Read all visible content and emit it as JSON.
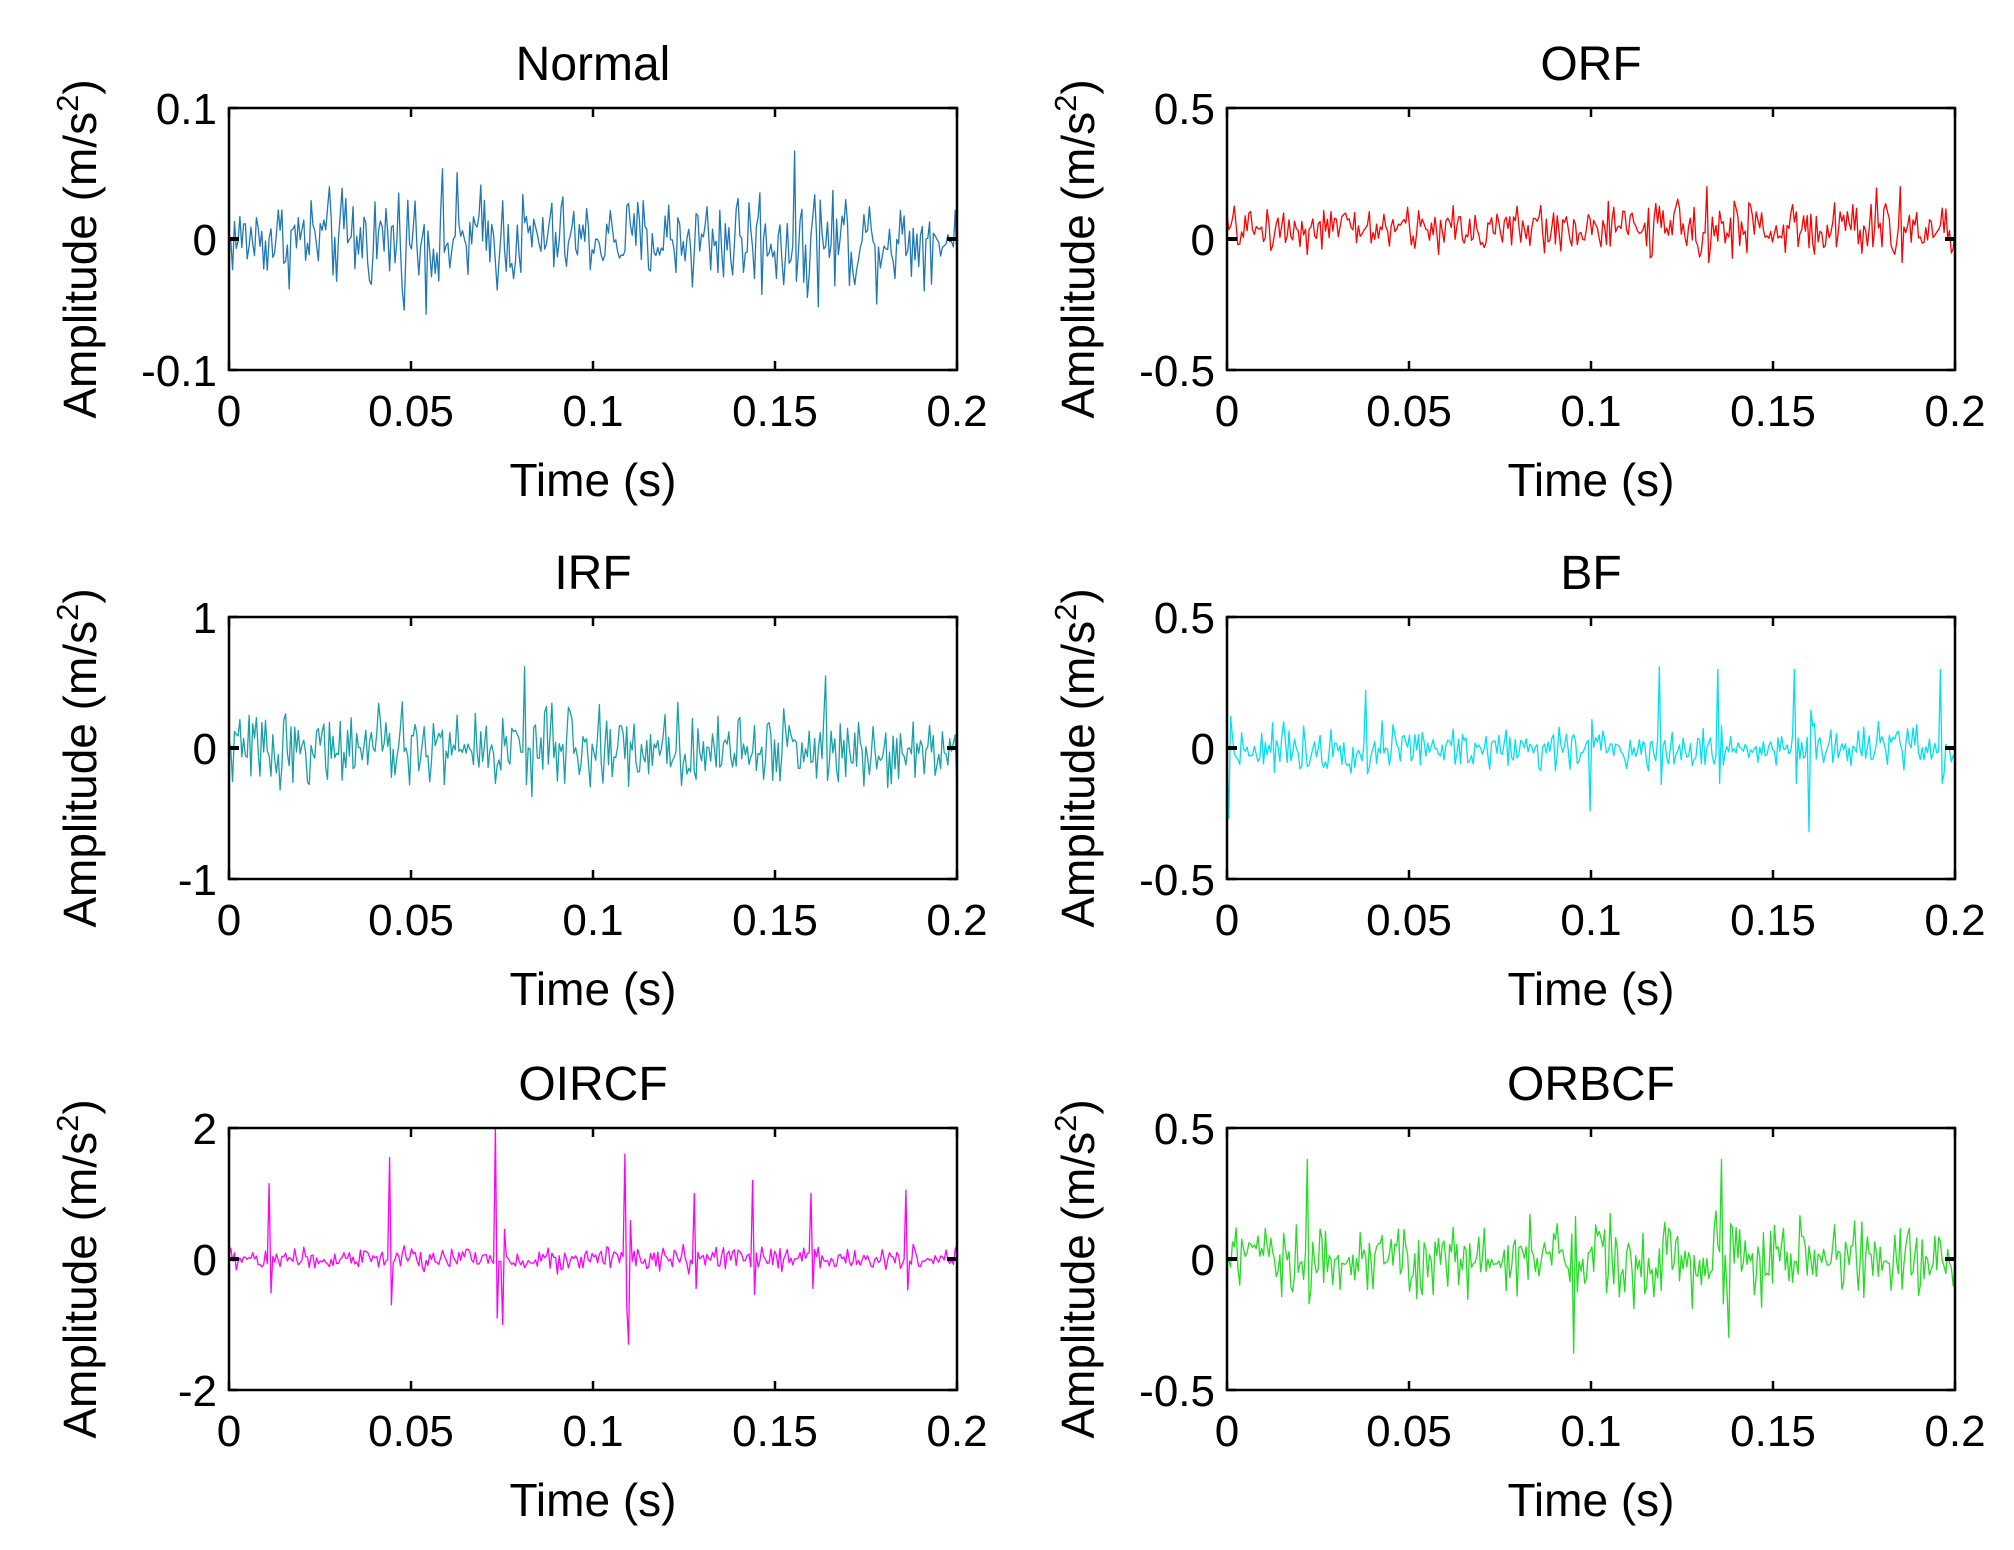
{
  "figure": {
    "background": "#ffffff"
  },
  "chart_data": [
    {
      "type": "line",
      "title": "Normal",
      "xlabel": "Time (s)",
      "ylabel_main": "Amplitude (m/s",
      "ylabel_sup": "2",
      "ylabel_close": ")",
      "xlim": [
        0,
        0.2
      ],
      "ylim": [
        -0.1,
        0.1
      ],
      "xticks": [
        0,
        0.05,
        0.1,
        0.15,
        0.2
      ],
      "xtick_labels": [
        "0",
        "0.05",
        "0.1",
        "0.15",
        "0.2"
      ],
      "yticks": [
        -0.1,
        0,
        0.1
      ],
      "ytick_labels": [
        "-0.1",
        "0",
        "0.1"
      ],
      "color": "#1f77b4",
      "signal": {
        "samples": 400,
        "noise": 0.022,
        "envelope": [
          [
            0,
            0.8
          ],
          [
            0.06,
            1.25
          ],
          [
            0.1,
            0.8
          ],
          [
            0.16,
            1.35
          ],
          [
            0.2,
            0.7
          ]
        ],
        "spikes": []
      }
    },
    {
      "type": "line",
      "title": "ORF",
      "xlabel": "Time (s)",
      "ylabel_main": "Amplitude (m/s",
      "ylabel_sup": "2",
      "ylabel_close": ")",
      "xlim": [
        0,
        0.2
      ],
      "ylim": [
        -0.5,
        0.5
      ],
      "xticks": [
        0,
        0.05,
        0.1,
        0.15,
        0.2
      ],
      "xtick_labels": [
        "0",
        "0.05",
        "0.1",
        "0.15",
        "0.2"
      ],
      "yticks": [
        -0.5,
        0,
        0.5
      ],
      "ytick_labels": [
        "-0.5",
        "0",
        "0.5"
      ],
      "color": "#ff0000",
      "signal": {
        "samples": 400,
        "noise": 0.055,
        "offset": 0.04,
        "envelope": [
          [
            0,
            0.9
          ],
          [
            0.13,
            1.1
          ],
          [
            0.18,
            1.35
          ],
          [
            0.2,
            1.0
          ]
        ],
        "spikes": [
          [
            0.132,
            0.2
          ],
          [
            0.185,
            0.2
          ]
        ]
      }
    },
    {
      "type": "line",
      "title": "IRF",
      "xlabel": "Time (s)",
      "ylabel_main": "Amplitude (m/s",
      "ylabel_sup": "2",
      "ylabel_close": ")",
      "xlim": [
        0,
        0.2
      ],
      "ylim": [
        -1,
        1
      ],
      "xticks": [
        0,
        0.05,
        0.1,
        0.15,
        0.2
      ],
      "xtick_labels": [
        "0",
        "0.05",
        "0.1",
        "0.15",
        "0.2"
      ],
      "yticks": [
        -1,
        0,
        1
      ],
      "ytick_labels": [
        "-1",
        "0",
        "1"
      ],
      "color": "#17a0a8",
      "signal": {
        "samples": 400,
        "noise": 0.16,
        "envelope": [
          [
            0,
            1.0
          ],
          [
            0.08,
            1.15
          ],
          [
            0.2,
            1.0
          ]
        ],
        "spikes": [
          [
            0.081,
            0.62
          ],
          [
            0.164,
            0.55
          ]
        ]
      }
    },
    {
      "type": "line",
      "title": "BF",
      "xlabel": "Time (s)",
      "ylabel_main": "Amplitude (m/s",
      "ylabel_sup": "2",
      "ylabel_close": ")",
      "xlim": [
        0,
        0.2
      ],
      "ylim": [
        -0.5,
        0.5
      ],
      "xticks": [
        0,
        0.05,
        0.1,
        0.15,
        0.2
      ],
      "xtick_labels": [
        "0",
        "0.05",
        "0.1",
        "0.15",
        "0.2"
      ],
      "yticks": [
        -0.5,
        0,
        0.5
      ],
      "ytick_labels": [
        "-0.5",
        "0",
        "0.5"
      ],
      "color": "#00e0f0",
      "signal": {
        "samples": 400,
        "noise": 0.05,
        "envelope": [
          [
            0,
            1.0
          ],
          [
            0.2,
            1.0
          ]
        ],
        "spikes": [
          [
            0.0005,
            -0.27
          ],
          [
            0.038,
            0.22
          ],
          [
            0.1,
            -0.24
          ],
          [
            0.119,
            0.31
          ],
          [
            0.135,
            0.3
          ],
          [
            0.156,
            0.3
          ],
          [
            0.16,
            -0.32
          ],
          [
            0.196,
            0.3
          ]
        ]
      }
    },
    {
      "type": "line",
      "title": "OIRCF",
      "xlabel": "Time (s)",
      "ylabel_main": "Amplitude (m/s",
      "ylabel_sup": "2",
      "ylabel_close": ")",
      "xlim": [
        0,
        0.2
      ],
      "ylim": [
        -2,
        2
      ],
      "xticks": [
        0,
        0.05,
        0.1,
        0.15,
        0.2
      ],
      "xtick_labels": [
        "0",
        "0.05",
        "0.1",
        "0.15",
        "0.2"
      ],
      "yticks": [
        -2,
        0,
        2
      ],
      "ytick_labels": [
        "-2",
        "0",
        "2"
      ],
      "color": "#ff00ff",
      "signal": {
        "samples": 400,
        "noise": 0.11,
        "envelope": [
          [
            0,
            1.0
          ],
          [
            0.2,
            1.0
          ]
        ],
        "spikes": [
          [
            0.011,
            1.15
          ],
          [
            0.044,
            1.55
          ],
          [
            0.073,
            2.0
          ],
          [
            0.075,
            -1.0
          ],
          [
            0.109,
            1.6
          ],
          [
            0.11,
            -1.3
          ],
          [
            0.128,
            1.0
          ],
          [
            0.144,
            1.2
          ],
          [
            0.16,
            1.0
          ],
          [
            0.186,
            1.05
          ]
        ]
      }
    },
    {
      "type": "line",
      "title": "ORBCF",
      "xlabel": "Time (s)",
      "ylabel_main": "Amplitude (m/s",
      "ylabel_sup": "2",
      "ylabel_close": ")",
      "xlim": [
        0,
        0.2
      ],
      "ylim": [
        -0.5,
        0.5
      ],
      "xticks": [
        0,
        0.05,
        0.1,
        0.15,
        0.2
      ],
      "xtick_labels": [
        "0",
        "0.05",
        "0.1",
        "0.15",
        "0.2"
      ],
      "yticks": [
        -0.5,
        0,
        0.5
      ],
      "ytick_labels": [
        "-0.5",
        "0",
        "0.5"
      ],
      "color": "#22dd22",
      "signal": {
        "samples": 400,
        "noise": 0.075,
        "envelope": [
          [
            0,
            1.0
          ],
          [
            0.08,
            1.3
          ],
          [
            0.14,
            1.3
          ],
          [
            0.2,
            1.0
          ]
        ],
        "spikes": [
          [
            0.022,
            0.38
          ],
          [
            0.095,
            -0.36
          ],
          [
            0.136,
            0.38
          ],
          [
            0.138,
            -0.3
          ]
        ]
      }
    }
  ]
}
